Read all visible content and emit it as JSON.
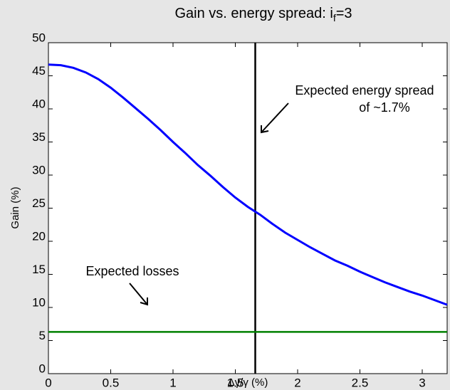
{
  "chart_data": {
    "type": "line",
    "title": [
      "Gain vs. energy spread: i",
      "f",
      "=3"
    ],
    "xlabel": "Δγ/γ (%)",
    "ylabel": "Gain (%)",
    "x": [
      0,
      0.1,
      0.2,
      0.3,
      0.4,
      0.5,
      0.6,
      0.7,
      0.8,
      0.9,
      1.0,
      1.1,
      1.2,
      1.3,
      1.4,
      1.5,
      1.6,
      1.7,
      1.8,
      1.9,
      2.0,
      2.1,
      2.2,
      2.3,
      2.4,
      2.5,
      2.6,
      2.7,
      2.8,
      2.9,
      3.0,
      3.1,
      3.2
    ],
    "series": [
      {
        "color": "#0000ff",
        "values": [
          46.7,
          46.6,
          46.2,
          45.5,
          44.5,
          43.2,
          41.7,
          40.1,
          38.5,
          36.8,
          35.0,
          33.3,
          31.5,
          29.9,
          28.2,
          26.6,
          25.2,
          24.0,
          22.6,
          21.3,
          20.2,
          19.1,
          18.1,
          17.1,
          16.3,
          15.4,
          14.6,
          13.8,
          13.1,
          12.4,
          11.8,
          11.1,
          10.4
        ]
      }
    ],
    "vline": {
      "value": 1.66,
      "color": "#000000"
    },
    "hline": {
      "value": 6.3,
      "color": "#008000"
    },
    "annotations": [
      "Expected energy spread",
      "of ~1.7%",
      "Expected losses"
    ],
    "xlim": [
      0,
      3.2
    ],
    "xticks": [
      0,
      0.5,
      1,
      1.5,
      2,
      2.5,
      3
    ],
    "ylim": [
      0,
      50
    ],
    "yticks": [
      0,
      5,
      10,
      15,
      20,
      25,
      30,
      35,
      40,
      45,
      50
    ]
  }
}
